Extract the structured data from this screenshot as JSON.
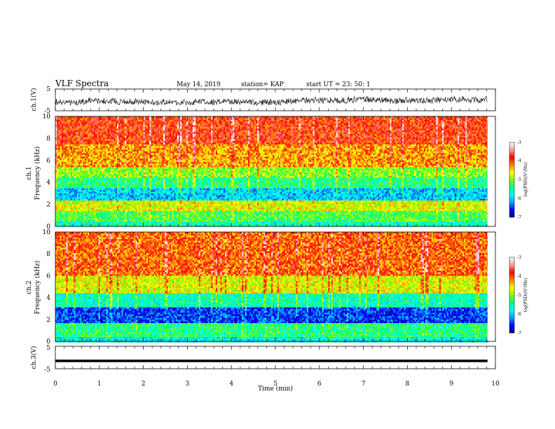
{
  "header": {
    "title": "VLF Spectra",
    "date": "May 14, 2019",
    "station": "station= KAP",
    "start": "start  UT  =   23: 50: 1"
  },
  "chart_data": [
    {
      "type": "line",
      "title": "",
      "ylabel": "ch.1(V)",
      "ylim": [
        -5,
        5
      ],
      "y_ticks": [
        "5",
        "-5"
      ],
      "xlim": [
        0,
        10
      ],
      "note": "noisy waveform fluctuating around about 0 to -3 V"
    },
    {
      "type": "heatmap",
      "ylabel": "ch.1\nFrequency (kHz)",
      "ylim": [
        0,
        10
      ],
      "y_ticks": [
        "0",
        "2",
        "4",
        "6",
        "8",
        "10"
      ],
      "xlim": [
        0,
        9.82
      ],
      "rows_khz": [
        {
          "from": 0,
          "to": 0.5,
          "level": -5.6
        },
        {
          "from": 0.5,
          "to": 1.5,
          "level": -5.2
        },
        {
          "from": 1.5,
          "to": 2.5,
          "level": -4.7
        },
        {
          "from": 2.5,
          "to": 3.5,
          "level": -6.0
        },
        {
          "from": 3.5,
          "to": 4.5,
          "level": -5.4
        },
        {
          "from": 4.5,
          "to": 5.5,
          "level": -5.0
        },
        {
          "from": 5.5,
          "to": 7.5,
          "level": -4.3
        },
        {
          "from": 7.5,
          "to": 10,
          "level": -3.9
        }
      ],
      "colorbar": {
        "label": "log(PSD)(V²/Hz)",
        "range": [
          -7,
          -3
        ],
        "ticks": [
          "-3",
          "-4",
          "-5",
          "-6",
          "-7"
        ]
      }
    },
    {
      "type": "heatmap",
      "ylabel": "ch.2\nFrequency (kHz)",
      "ylim": [
        0,
        10
      ],
      "y_ticks": [
        "0",
        "2",
        "4",
        "6",
        "8",
        "10"
      ],
      "xlim": [
        0,
        9.82
      ],
      "rows_khz": [
        {
          "from": 0,
          "to": 0.5,
          "level": -5.8
        },
        {
          "from": 0.5,
          "to": 1.8,
          "level": -5.4
        },
        {
          "from": 1.8,
          "to": 3.2,
          "level": -6.5
        },
        {
          "from": 3.2,
          "to": 4.5,
          "level": -5.6
        },
        {
          "from": 4.5,
          "to": 6.0,
          "level": -4.7
        },
        {
          "from": 6.0,
          "to": 10,
          "level": -4.1
        }
      ],
      "colorbar": {
        "label": "log(PSD)(V²/Hz)",
        "range": [
          -7,
          -3
        ],
        "ticks": [
          "-3",
          "-4",
          "-5",
          "-6",
          "-7"
        ]
      }
    },
    {
      "type": "line",
      "ylabel": "ch.3(V)",
      "ylim": [
        -5,
        5
      ],
      "y_ticks": [
        "5",
        "-5"
      ],
      "xlim": [
        0,
        10
      ],
      "x": [
        0,
        9.82
      ],
      "y": [
        -1.5,
        -1.5
      ],
      "xlabel": "Time (min)",
      "x_ticks": [
        "0",
        "1",
        "2",
        "3",
        "4",
        "5",
        "6",
        "7",
        "8",
        "9",
        "10"
      ]
    }
  ],
  "colors": {
    "scale": [
      "#000090",
      "#0000ff",
      "#00a0ff",
      "#00ffff",
      "#00ff80",
      "#80ff00",
      "#ffff00",
      "#ff8000",
      "#ff0000",
      "#ffa0a0",
      "#ffffff"
    ]
  }
}
